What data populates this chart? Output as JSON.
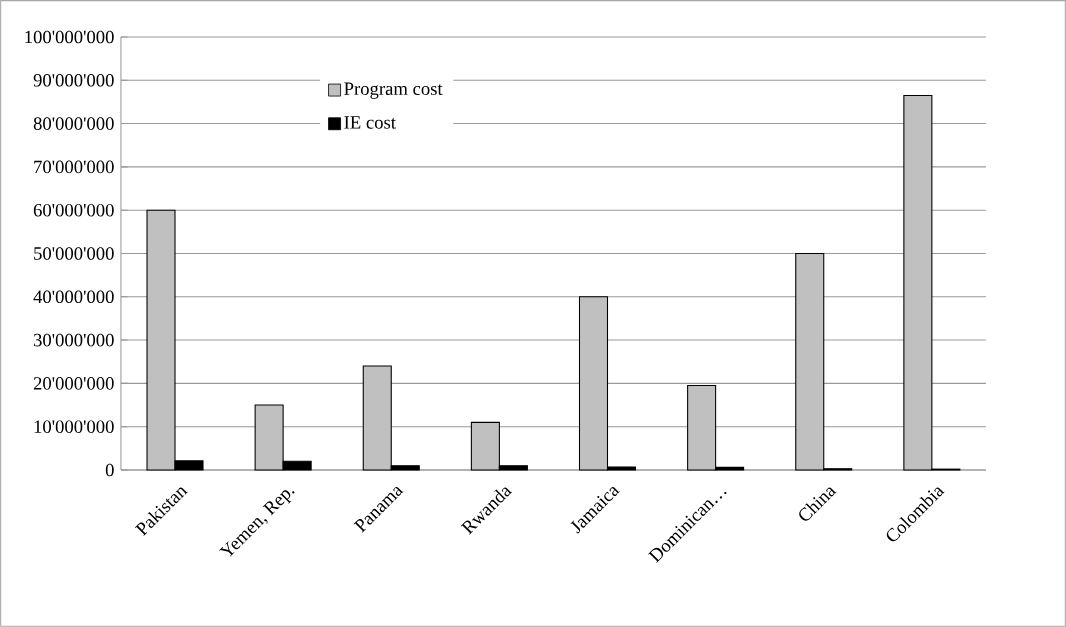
{
  "chart_data": {
    "type": "bar",
    "categories": [
      "Pakistan",
      "Yemen, Rep.",
      "Panama",
      "Rwanda",
      "Jamaica",
      "Dominican…",
      "China",
      "Colombia"
    ],
    "series": [
      {
        "name": "Program cost",
        "color": "#c0c0c0",
        "values": [
          60000000,
          15000000,
          24000000,
          11000000,
          40000000,
          19500000,
          50000000,
          86500000
        ]
      },
      {
        "name": "IE cost",
        "color": "#000000",
        "values": [
          2100000,
          2000000,
          1000000,
          1000000,
          700000,
          600000,
          300000,
          200000
        ]
      }
    ],
    "ylim": [
      0,
      100000000
    ],
    "yticks": [
      {
        "value": 0,
        "label": "0"
      },
      {
        "value": 10000000,
        "label": "10'000'000"
      },
      {
        "value": 20000000,
        "label": "20'000'000"
      },
      {
        "value": 30000000,
        "label": "30'000'000"
      },
      {
        "value": 40000000,
        "label": "40'000'000"
      },
      {
        "value": 50000000,
        "label": "50'000'000"
      },
      {
        "value": 60000000,
        "label": "60'000'000"
      },
      {
        "value": 70000000,
        "label": "70'000'000"
      },
      {
        "value": 80000000,
        "label": "80'000'000"
      },
      {
        "value": 90000000,
        "label": "90'000'000"
      },
      {
        "value": 100000000,
        "label": "100'000'000"
      }
    ],
    "grid": "y",
    "legend": "top"
  }
}
